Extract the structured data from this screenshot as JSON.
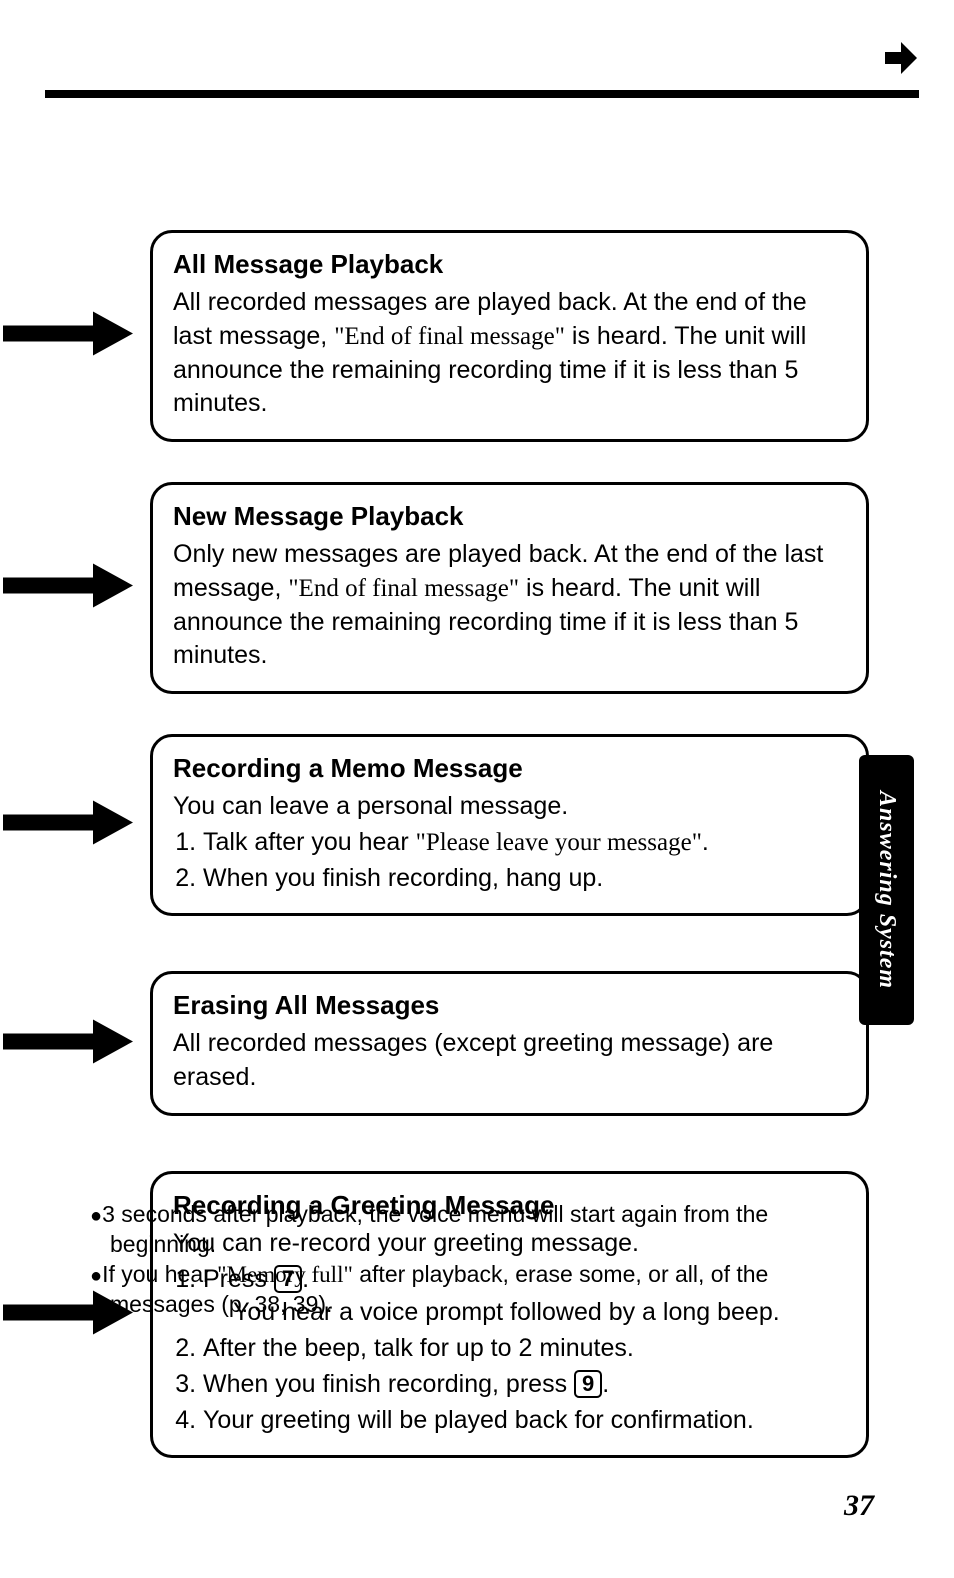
{
  "page_number": "37",
  "side_tab": "Answering System",
  "boxes": [
    {
      "title": "All Message Playback",
      "body_html": "All recorded messages are played back. At the end of the last message, <span class='quote'>\"End of final message\"</span> is heard. The unit will announce the remaining recording time if it is less than 5 minutes."
    },
    {
      "title": "New Message Playback",
      "body_html": "Only new messages are played back. At the end of the last message, <span class='quote'>\"End of final message\"</span> is heard. The unit will announce the remaining recording time if it is less than 5 minutes."
    },
    {
      "title": "Recording a Memo Message",
      "intro": "You can leave a personal message.",
      "steps_html": [
        "Talk after you hear <span class='quote'>\"Please leave your message\"</span>.",
        "When you finish recording, hang up."
      ]
    },
    {
      "title": "Erasing All Messages",
      "body_html": "All recorded messages (except greeting message) are erased."
    },
    {
      "title": "Recording a Greeting Message",
      "intro": "You can re-record your greeting message.",
      "steps_html": [
        "Press <span class='keycap'>7</span>.<br><span class='sub'>You hear a voice prompt followed by a long beep.</span>",
        "After the beep, talk for up to 2 minutes.",
        "When you finish recording, press <span class='keycap'>9</span>.",
        "Your greeting will be played back for confirmation."
      ]
    }
  ],
  "footnotes_html": [
    "<span class='bullet'>●</span>3 seconds after playback, the voice menu will start again from the beginning.",
    "<span class='bullet'>●</span>If you hear <span class='quote'>\"Memory full\"</span> after playback, erase some, or all, of the messages (p. 38, 39)."
  ]
}
